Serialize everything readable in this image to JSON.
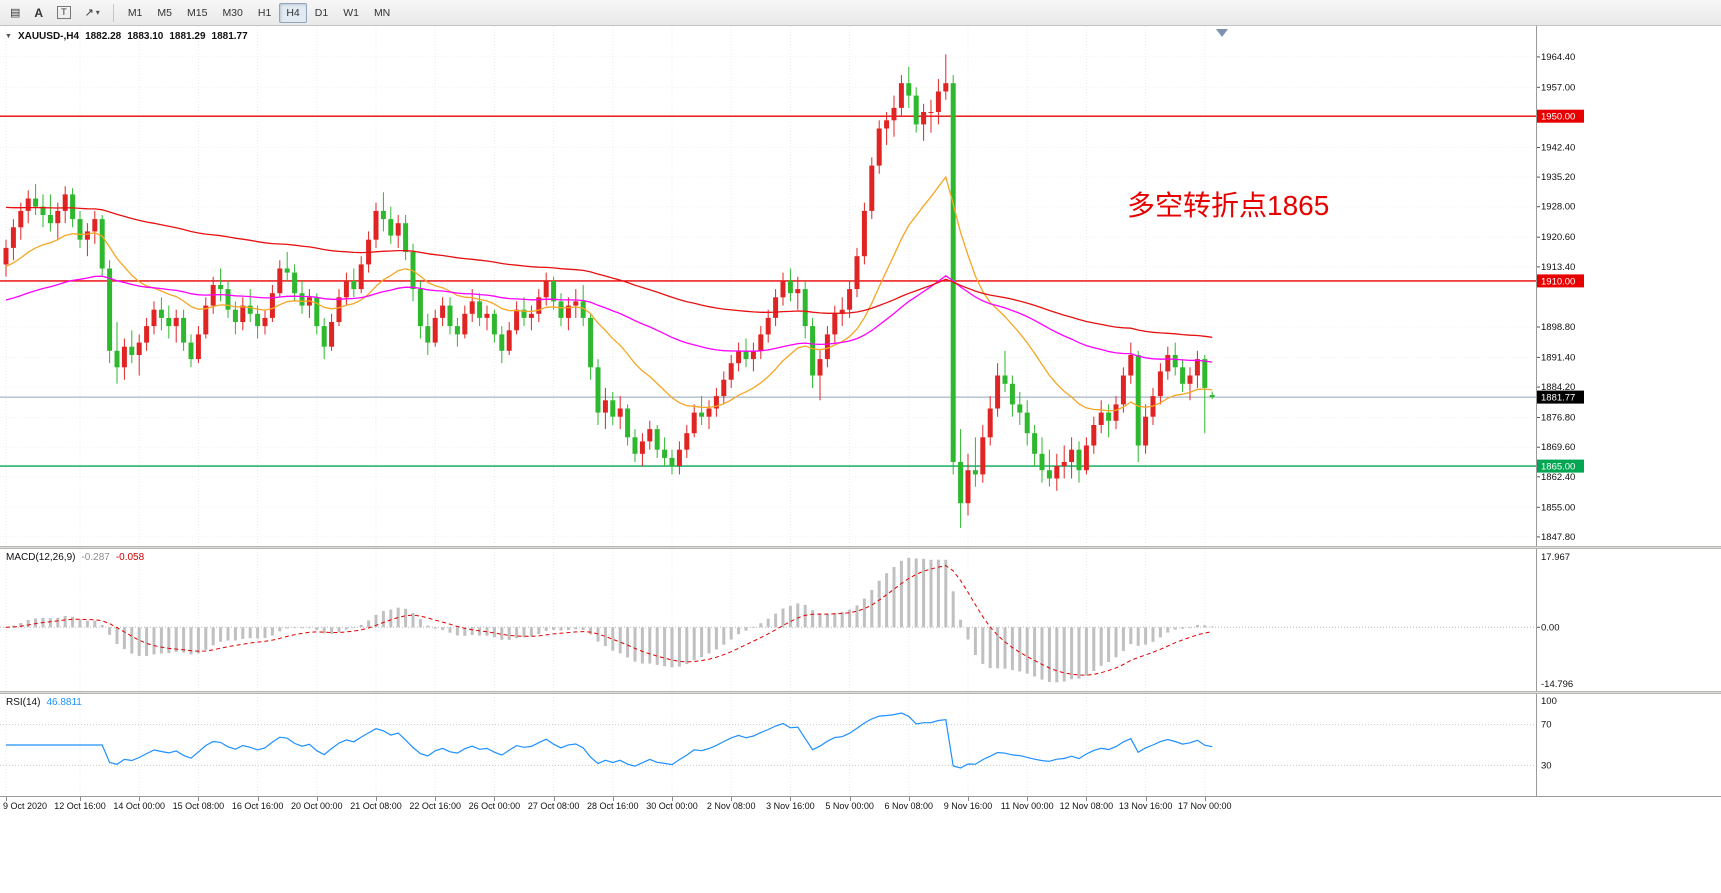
{
  "toolbar": {
    "tools": [
      {
        "name": "chart-grid",
        "glyph": "▤"
      },
      {
        "name": "text-annotation",
        "glyph": "A"
      },
      {
        "name": "text-label",
        "glyph": "T"
      },
      {
        "name": "draw-arrow",
        "glyph": "↗"
      },
      {
        "name": "dropdown-caret",
        "glyph": "▾"
      }
    ],
    "timeframes": [
      "M1",
      "M5",
      "M15",
      "M30",
      "H1",
      "H4",
      "D1",
      "W1",
      "MN"
    ],
    "active_timeframe": "H4"
  },
  "chart": {
    "collapse_glyph": "▼",
    "symbol_label": "XAUUSD-,H4",
    "ohlc": {
      "open": "1882.28",
      "high": "1883.10",
      "low": "1881.29",
      "close": "1881.77"
    },
    "annotation": {
      "text": "多空转折点1865"
    },
    "hlines": [
      {
        "price": 1950.0,
        "label": "1950.00",
        "color": "#e80000"
      },
      {
        "price": 1910.0,
        "label": "1910.00",
        "color": "#e80000"
      },
      {
        "price": 1865.0,
        "label": "1865.00",
        "color": "#00a651"
      }
    ],
    "bid": {
      "price": 1881.77,
      "label": "1881.77"
    }
  },
  "colors": {
    "bull": "#e02424",
    "bear": "#2db82d",
    "ma_fast": "#f5a623",
    "ma_mid": "#ff00ff",
    "ma_slow": "#e81010",
    "bid_line": "#90a4b8",
    "bid_label_bg": "#000000",
    "macd_hist": "#c0c0c0",
    "macd_signal": "#e00000",
    "rsi_line": "#1e90ff",
    "annotation": "#e60000"
  },
  "macd": {
    "label": "MACD(12,26,9)",
    "value_main": "-0.287",
    "value_signal": "-0.058",
    "params": {
      "fast": 12,
      "slow": 26,
      "signal": 9
    },
    "axis": [
      "17.967",
      "0.00",
      "-14.796"
    ]
  },
  "rsi": {
    "label": "RSI(14)",
    "value": "46.8811",
    "period": 14,
    "levels": [
      70,
      30
    ],
    "axis": [
      "100",
      "70",
      "30"
    ]
  },
  "chart_data": {
    "type": "candlestick",
    "symbol": "XAUUSD-",
    "timeframe": "H4",
    "ohlc_format": [
      "open",
      "high",
      "low",
      "close"
    ],
    "price_axis_ticks": [
      "1964.40",
      "1957.00",
      "1942.40",
      "1935.20",
      "1928.00",
      "1920.60",
      "1913.40",
      "1898.80",
      "1891.40",
      "1884.20",
      "1876.80",
      "1869.60",
      "1862.40",
      "1855.00",
      "1847.80"
    ],
    "time_labels": [
      {
        "i": 0,
        "label": "9 Oct 2020"
      },
      {
        "i": 10,
        "label": "12 Oct 16:00"
      },
      {
        "i": 18,
        "label": "14 Oct 00:00"
      },
      {
        "i": 26,
        "label": "15 Oct 08:00"
      },
      {
        "i": 34,
        "label": "16 Oct 16:00"
      },
      {
        "i": 42,
        "label": "20 Oct 00:00"
      },
      {
        "i": 50,
        "label": "21 Oct 08:00"
      },
      {
        "i": 58,
        "label": "22 Oct 16:00"
      },
      {
        "i": 66,
        "label": "26 Oct 00:00"
      },
      {
        "i": 74,
        "label": "27 Oct 08:00"
      },
      {
        "i": 82,
        "label": "28 Oct 16:00"
      },
      {
        "i": 90,
        "label": "30 Oct 00:00"
      },
      {
        "i": 98,
        "label": "2 Nov 08:00"
      },
      {
        "i": 106,
        "label": "3 Nov 16:00"
      },
      {
        "i": 114,
        "label": "5 Nov 00:00"
      },
      {
        "i": 122,
        "label": "6 Nov 08:00"
      },
      {
        "i": 130,
        "label": "9 Nov 16:00"
      },
      {
        "i": 138,
        "label": "11 Nov 00:00"
      },
      {
        "i": 146,
        "label": "12 Nov 08:00"
      },
      {
        "i": 154,
        "label": "13 Nov 16:00"
      },
      {
        "i": 162,
        "label": "17 Nov 00:00"
      }
    ],
    "candles": [
      [
        1914,
        1920,
        1911,
        1918
      ],
      [
        1918,
        1925,
        1915,
        1923
      ],
      [
        1923,
        1929,
        1920,
        1927
      ],
      [
        1927,
        1932,
        1924,
        1930
      ],
      [
        1930,
        1933.5,
        1926,
        1928
      ],
      [
        1928,
        1931,
        1923,
        1926
      ],
      [
        1926,
        1931,
        1922,
        1924
      ],
      [
        1924,
        1929,
        1920,
        1927
      ],
      [
        1927,
        1933,
        1924,
        1931
      ],
      [
        1931,
        1932.5,
        1923,
        1925
      ],
      [
        1925,
        1927,
        1918,
        1920
      ],
      [
        1920,
        1924,
        1916,
        1922
      ],
      [
        1922,
        1927,
        1919,
        1925
      ],
      [
        1925,
        1926,
        1911,
        1913
      ],
      [
        1913,
        1915,
        1890,
        1893
      ],
      [
        1893,
        1900,
        1885,
        1889
      ],
      [
        1889,
        1896,
        1886,
        1894
      ],
      [
        1894,
        1898,
        1890,
        1892
      ],
      [
        1892,
        1897,
        1887,
        1895
      ],
      [
        1895,
        1901,
        1893,
        1899
      ],
      [
        1899,
        1905,
        1897,
        1903
      ],
      [
        1903,
        1906,
        1898,
        1901
      ],
      [
        1901,
        1904,
        1896,
        1899
      ],
      [
        1899,
        1903,
        1895,
        1901
      ],
      [
        1901,
        1903,
        1893,
        1895
      ],
      [
        1895,
        1897,
        1889,
        1891
      ],
      [
        1891,
        1899,
        1890,
        1897
      ],
      [
        1897,
        1906,
        1896,
        1904
      ],
      [
        1904,
        1911,
        1902,
        1909
      ],
      [
        1909,
        1913,
        1905,
        1908
      ],
      [
        1908,
        1910,
        1901,
        1903
      ],
      [
        1903,
        1905,
        1897,
        1900
      ],
      [
        1900,
        1906,
        1898,
        1904
      ],
      [
        1904,
        1908,
        1900,
        1902
      ],
      [
        1902,
        1904,
        1896,
        1899
      ],
      [
        1899,
        1903,
        1897,
        1901
      ],
      [
        1901,
        1909,
        1900,
        1907
      ],
      [
        1907,
        1915,
        1906,
        1913
      ],
      [
        1913,
        1917,
        1910,
        1912
      ],
      [
        1912,
        1914,
        1905,
        1907
      ],
      [
        1907,
        1910,
        1902,
        1904
      ],
      [
        1904,
        1908,
        1901,
        1906
      ],
      [
        1906,
        1907,
        1897,
        1899
      ],
      [
        1899,
        1901,
        1891,
        1894
      ],
      [
        1894,
        1902,
        1893,
        1900
      ],
      [
        1900,
        1908,
        1899,
        1906
      ],
      [
        1906,
        1912,
        1904,
        1910
      ],
      [
        1910,
        1913,
        1906,
        1908
      ],
      [
        1908,
        1916,
        1907,
        1914
      ],
      [
        1914,
        1922,
        1912,
        1920
      ],
      [
        1920,
        1929,
        1918,
        1927
      ],
      [
        1927,
        1931.5,
        1922,
        1925
      ],
      [
        1925,
        1928,
        1919,
        1921
      ],
      [
        1921,
        1926,
        1918,
        1924
      ],
      [
        1924,
        1926,
        1915,
        1917
      ],
      [
        1917,
        1919,
        1905,
        1908
      ],
      [
        1908,
        1910,
        1896,
        1899
      ],
      [
        1899,
        1902,
        1892,
        1895
      ],
      [
        1895,
        1903,
        1894,
        1901
      ],
      [
        1901,
        1906,
        1899,
        1904
      ],
      [
        1904,
        1906,
        1897,
        1899
      ],
      [
        1899,
        1901,
        1894,
        1897
      ],
      [
        1897,
        1904,
        1896,
        1902
      ],
      [
        1902,
        1908,
        1900,
        1905
      ],
      [
        1905,
        1907,
        1899,
        1901
      ],
      [
        1901,
        1904,
        1898,
        1902
      ],
      [
        1902,
        1903,
        1895,
        1897
      ],
      [
        1897,
        1899,
        1890,
        1893
      ],
      [
        1893,
        1900,
        1892,
        1898
      ],
      [
        1898,
        1905,
        1897,
        1903
      ],
      [
        1903,
        1906,
        1899,
        1901
      ],
      [
        1901,
        1904,
        1898,
        1902
      ],
      [
        1902,
        1908,
        1900,
        1906
      ],
      [
        1906,
        1912,
        1904,
        1910
      ],
      [
        1910,
        1911,
        1903,
        1905
      ],
      [
        1905,
        1907,
        1899,
        1901
      ],
      [
        1901,
        1906,
        1898,
        1904
      ],
      [
        1904,
        1908,
        1901,
        1905
      ],
      [
        1905,
        1909,
        1899,
        1901
      ],
      [
        1901,
        1902,
        1886,
        1889
      ],
      [
        1889,
        1891,
        1875,
        1878
      ],
      [
        1878,
        1884,
        1874,
        1881
      ],
      [
        1881,
        1883,
        1875,
        1877
      ],
      [
        1877,
        1882,
        1874,
        1879
      ],
      [
        1879,
        1880,
        1870,
        1872
      ],
      [
        1872,
        1874,
        1866,
        1868
      ],
      [
        1868,
        1873,
        1865,
        1871
      ],
      [
        1871,
        1876,
        1869,
        1874
      ],
      [
        1874,
        1875,
        1867,
        1869
      ],
      [
        1869,
        1872,
        1865,
        1867
      ],
      [
        1867,
        1869,
        1863,
        1865
      ],
      [
        1865,
        1871,
        1863,
        1869
      ],
      [
        1869,
        1875,
        1867,
        1873
      ],
      [
        1873,
        1880,
        1872,
        1878
      ],
      [
        1878,
        1882,
        1875,
        1877
      ],
      [
        1877,
        1881,
        1874,
        1879
      ],
      [
        1879,
        1884,
        1877,
        1882
      ],
      [
        1882,
        1888,
        1880,
        1886
      ],
      [
        1886,
        1892,
        1884,
        1890
      ],
      [
        1890,
        1895,
        1888,
        1893
      ],
      [
        1893,
        1896,
        1889,
        1891
      ],
      [
        1891,
        1895,
        1888,
        1893
      ],
      [
        1893,
        1899,
        1891,
        1897
      ],
      [
        1897,
        1903,
        1895,
        1901
      ],
      [
        1901,
        1908,
        1899,
        1906
      ],
      [
        1906,
        1912,
        1904,
        1910
      ],
      [
        1910,
        1913,
        1905,
        1907
      ],
      [
        1907,
        1911,
        1903,
        1908
      ],
      [
        1908,
        1910,
        1896,
        1899
      ],
      [
        1899,
        1901,
        1884,
        1887
      ],
      [
        1887,
        1893,
        1881,
        1891
      ],
      [
        1891,
        1899,
        1889,
        1897
      ],
      [
        1897,
        1904,
        1895,
        1902
      ],
      [
        1902,
        1906,
        1899,
        1903
      ],
      [
        1903,
        1910,
        1901,
        1908
      ],
      [
        1908,
        1918,
        1906,
        1916
      ],
      [
        1916,
        1929,
        1914,
        1927
      ],
      [
        1927,
        1940,
        1925,
        1938
      ],
      [
        1938,
        1949,
        1936,
        1947
      ],
      [
        1947,
        1951,
        1943,
        1949
      ],
      [
        1949,
        1955,
        1945,
        1952
      ],
      [
        1952,
        1960,
        1950,
        1958
      ],
      [
        1958,
        1962,
        1952,
        1955
      ],
      [
        1955,
        1957,
        1946,
        1948
      ],
      [
        1948,
        1953,
        1944,
        1951
      ],
      [
        1951,
        1954,
        1946,
        1951
      ],
      [
        1951,
        1959,
        1948,
        1956
      ],
      [
        1956,
        1965,
        1954,
        1958
      ],
      [
        1958,
        1960,
        1863,
        1866
      ],
      [
        1866,
        1874,
        1850,
        1856
      ],
      [
        1856,
        1868,
        1853,
        1864
      ],
      [
        1864,
        1872,
        1860,
        1863
      ],
      [
        1863,
        1875,
        1861,
        1872
      ],
      [
        1872,
        1882,
        1870,
        1879
      ],
      [
        1879,
        1890,
        1877,
        1887
      ],
      [
        1887,
        1893,
        1883,
        1885
      ],
      [
        1885,
        1887,
        1877,
        1880
      ],
      [
        1880,
        1883,
        1875,
        1878
      ],
      [
        1878,
        1881,
        1870,
        1873
      ],
      [
        1873,
        1875,
        1865,
        1868
      ],
      [
        1868,
        1872,
        1861,
        1864
      ],
      [
        1864,
        1869,
        1860,
        1862
      ],
      [
        1862,
        1868,
        1859,
        1865
      ],
      [
        1865,
        1870,
        1862,
        1866
      ],
      [
        1866,
        1872,
        1862,
        1869
      ],
      [
        1869,
        1871,
        1861,
        1864
      ],
      [
        1864,
        1872,
        1863,
        1870
      ],
      [
        1870,
        1877,
        1868,
        1875
      ],
      [
        1875,
        1881,
        1873,
        1878
      ],
      [
        1878,
        1880,
        1872,
        1876
      ],
      [
        1876,
        1882,
        1874,
        1880
      ],
      [
        1880,
        1889,
        1878,
        1887
      ],
      [
        1887,
        1895,
        1885,
        1892
      ],
      [
        1892,
        1893,
        1866,
        1870
      ],
      [
        1870,
        1880,
        1868,
        1877
      ],
      [
        1877,
        1884,
        1875,
        1882
      ],
      [
        1882,
        1890,
        1880,
        1888
      ],
      [
        1888,
        1894,
        1886,
        1892
      ],
      [
        1892,
        1895,
        1887,
        1889
      ],
      [
        1889,
        1891,
        1883,
        1885
      ],
      [
        1885,
        1889,
        1881,
        1887
      ],
      [
        1887,
        1893,
        1884,
        1891
      ],
      [
        1891,
        1892,
        1873,
        1884
      ],
      [
        1882.28,
        1883.1,
        1881.29,
        1881.77
      ]
    ]
  }
}
